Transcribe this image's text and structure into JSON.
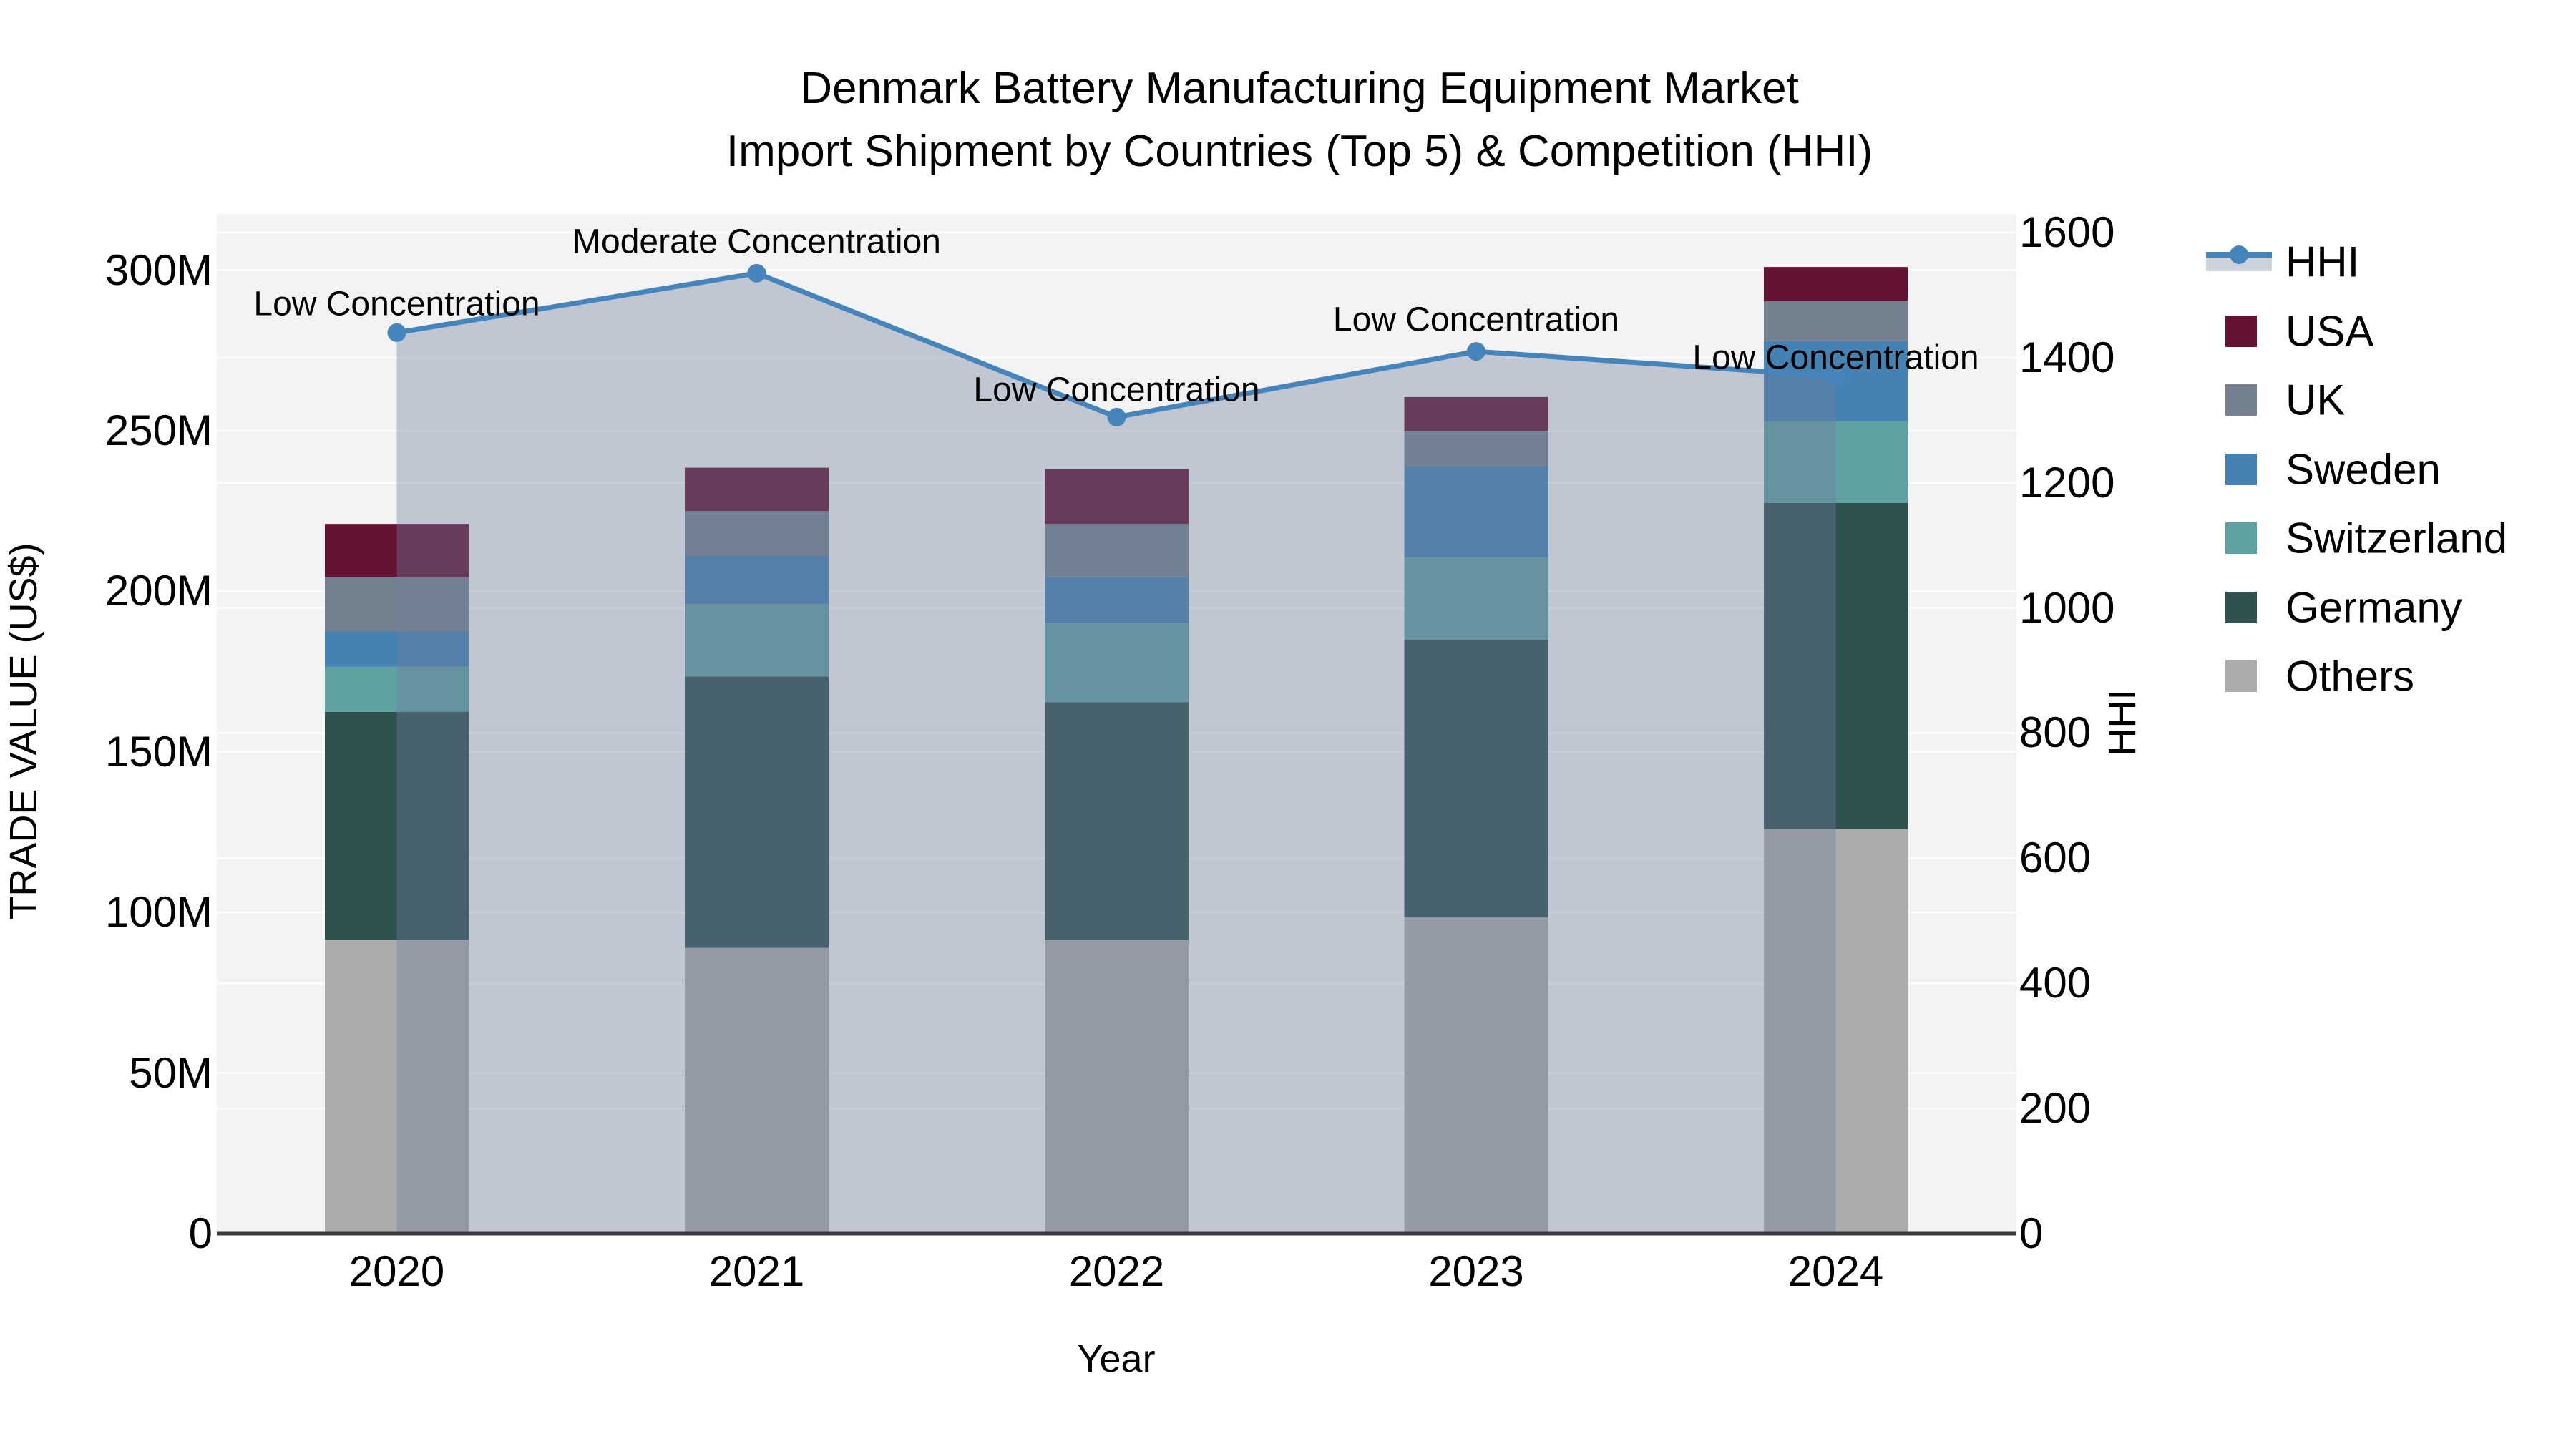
{
  "title": {
    "line1": "Denmark Battery Manufacturing Equipment Market",
    "line2": "Import Shipment by Countries (Top 5) & Competition (HHI)"
  },
  "axes": {
    "x": {
      "label": "Year",
      "tick_labels": [
        "2020",
        "2021",
        "2022",
        "2023",
        "2024"
      ]
    },
    "y_left": {
      "label": "TRADE VALUE (US$)",
      "tick_labels": [
        "0",
        "50M",
        "100M",
        "150M",
        "200M",
        "250M",
        "300M"
      ],
      "tick_values": [
        0,
        50,
        100,
        150,
        200,
        250,
        300
      ]
    },
    "y_right": {
      "label": "HHI",
      "tick_labels": [
        "0",
        "200",
        "400",
        "600",
        "800",
        "1000",
        "1200",
        "1400",
        "1600"
      ],
      "tick_values": [
        0,
        200,
        400,
        600,
        800,
        1000,
        1200,
        1400,
        1600
      ]
    }
  },
  "legend": {
    "position": "right",
    "items": [
      {
        "label": "HHI",
        "type": "line",
        "color": "#4685bb",
        "band_color": "#cdd3dc"
      },
      {
        "label": "USA",
        "type": "swatch",
        "color": "#661233"
      },
      {
        "label": "UK",
        "type": "swatch",
        "color": "#74818f"
      },
      {
        "label": "Sweden",
        "type": "swatch",
        "color": "#4482b4"
      },
      {
        "label": "Switzerland",
        "type": "swatch",
        "color": "#60a1a2"
      },
      {
        "label": "Germany",
        "type": "swatch",
        "color": "#2f5150"
      },
      {
        "label": "Others",
        "type": "swatch",
        "color": "#abacab"
      }
    ]
  },
  "chart_data": {
    "type": "bar",
    "subtype": "stacked-bars-with-line-overlay",
    "title": "Denmark Battery Manufacturing Equipment Market Import Shipment by Countries (Top 5) & Competition (HHI)",
    "categories": [
      "2020",
      "2021",
      "2022",
      "2023",
      "2024"
    ],
    "xlabel": "Year",
    "ylabel_left": "TRADE VALUE (US$)",
    "ylabel_right": "HHI",
    "ylim_left": [
      0,
      300
    ],
    "ylim_right": [
      0,
      1600
    ],
    "units_left": "millions of US$",
    "grid": "on",
    "stack_order_bottom_to_top": [
      "Others",
      "Germany",
      "Switzerland",
      "Sweden",
      "UK",
      "USA"
    ],
    "series": [
      {
        "name": "Others",
        "values": [
          91.5,
          89.0,
          91.5,
          98.5,
          126.0
        ],
        "color": "#abacab"
      },
      {
        "name": "Germany",
        "values": [
          71.0,
          84.5,
          74.0,
          86.5,
          101.5
        ],
        "color": "#2f5150"
      },
      {
        "name": "Switzerland",
        "values": [
          14.0,
          22.5,
          24.5,
          25.5,
          25.5
        ],
        "color": "#60a1a2"
      },
      {
        "name": "Sweden",
        "values": [
          11.0,
          15.0,
          14.5,
          28.5,
          25.0
        ],
        "color": "#4482b4"
      },
      {
        "name": "UK",
        "values": [
          17.0,
          14.0,
          16.5,
          11.0,
          12.5
        ],
        "color": "#74818f"
      },
      {
        "name": "USA",
        "values": [
          16.5,
          13.5,
          17.0,
          10.5,
          10.5
        ],
        "color": "#661233"
      }
    ],
    "bar_totals": [
      221,
      238.5,
      238,
      260.5,
      301
    ],
    "line_series": {
      "name": "HHI",
      "axis": "right",
      "values": [
        1440,
        1535,
        1305,
        1410,
        1370
      ],
      "color": "#4685bb",
      "area_fill": "rgba(111,127,156,0.38)"
    },
    "annotations": [
      {
        "category": "2020",
        "text": "Low Concentration"
      },
      {
        "category": "2021",
        "text": "Moderate Concentration"
      },
      {
        "category": "2022",
        "text": "Low Concentration"
      },
      {
        "category": "2023",
        "text": "Low Concentration"
      },
      {
        "category": "2024",
        "text": "Low Concentration"
      }
    ]
  },
  "colors": {
    "plot_background": "#f3f3f4",
    "gridline": "#ffffff",
    "axis_line": "#3a3a3a",
    "text": "#000000"
  }
}
